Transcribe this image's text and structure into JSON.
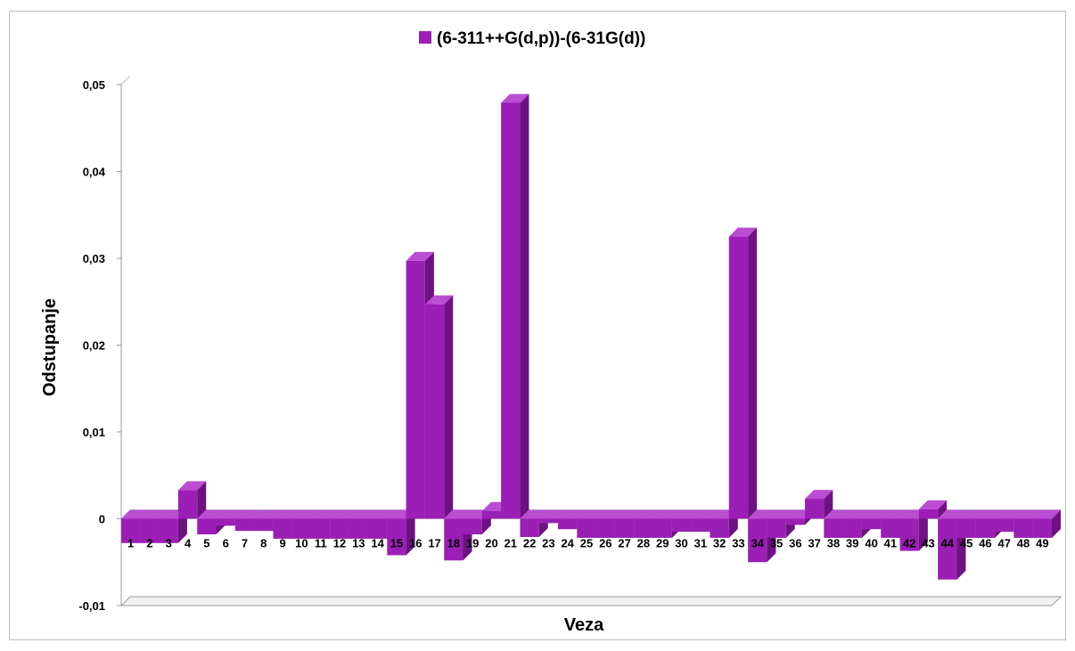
{
  "chart_data": {
    "type": "bar",
    "title": "",
    "xlabel": "Veza",
    "ylabel": "Odstupanje",
    "legend_position": "top",
    "grid": false,
    "ylim": [
      -0.01,
      0.05
    ],
    "y_ticks": [
      "-0,01",
      "0",
      "0,01",
      "0,02",
      "0,03",
      "0,04",
      "0,05"
    ],
    "categories": [
      "1",
      "2",
      "3",
      "4",
      "5",
      "6",
      "7",
      "8",
      "9",
      "10",
      "11",
      "12",
      "13",
      "14",
      "15",
      "16",
      "17",
      "18",
      "19",
      "20",
      "21",
      "22",
      "23",
      "24",
      "25",
      "26",
      "27",
      "28",
      "29",
      "30",
      "31",
      "32",
      "33",
      "34",
      "35",
      "36",
      "37",
      "38",
      "39",
      "40",
      "41",
      "42",
      "43",
      "44",
      "45",
      "46",
      "47",
      "48",
      "49"
    ],
    "series": [
      {
        "name": "(6-311++G(d,p))-(6-31G(d))",
        "color": "#9b1fb5",
        "values": [
          -0.0028,
          -0.0028,
          -0.0028,
          0.0033,
          -0.0018,
          -0.0008,
          -0.0014,
          -0.0014,
          -0.0023,
          -0.0023,
          -0.0023,
          -0.0023,
          -0.0023,
          -0.0023,
          -0.0042,
          0.0297,
          0.0247,
          -0.0048,
          -0.0018,
          0.0009,
          0.0479,
          -0.0021,
          -0.0005,
          -0.0012,
          -0.0022,
          -0.0022,
          -0.0022,
          -0.0022,
          -0.0022,
          -0.0015,
          -0.0015,
          -0.0022,
          0.0325,
          -0.005,
          -0.0022,
          -0.0007,
          0.0023,
          -0.0022,
          -0.0022,
          -0.0012,
          -0.0022,
          -0.0037,
          0.0011,
          -0.007,
          -0.0022,
          -0.0022,
          -0.0015,
          -0.0022,
          -0.0022
        ]
      }
    ]
  }
}
